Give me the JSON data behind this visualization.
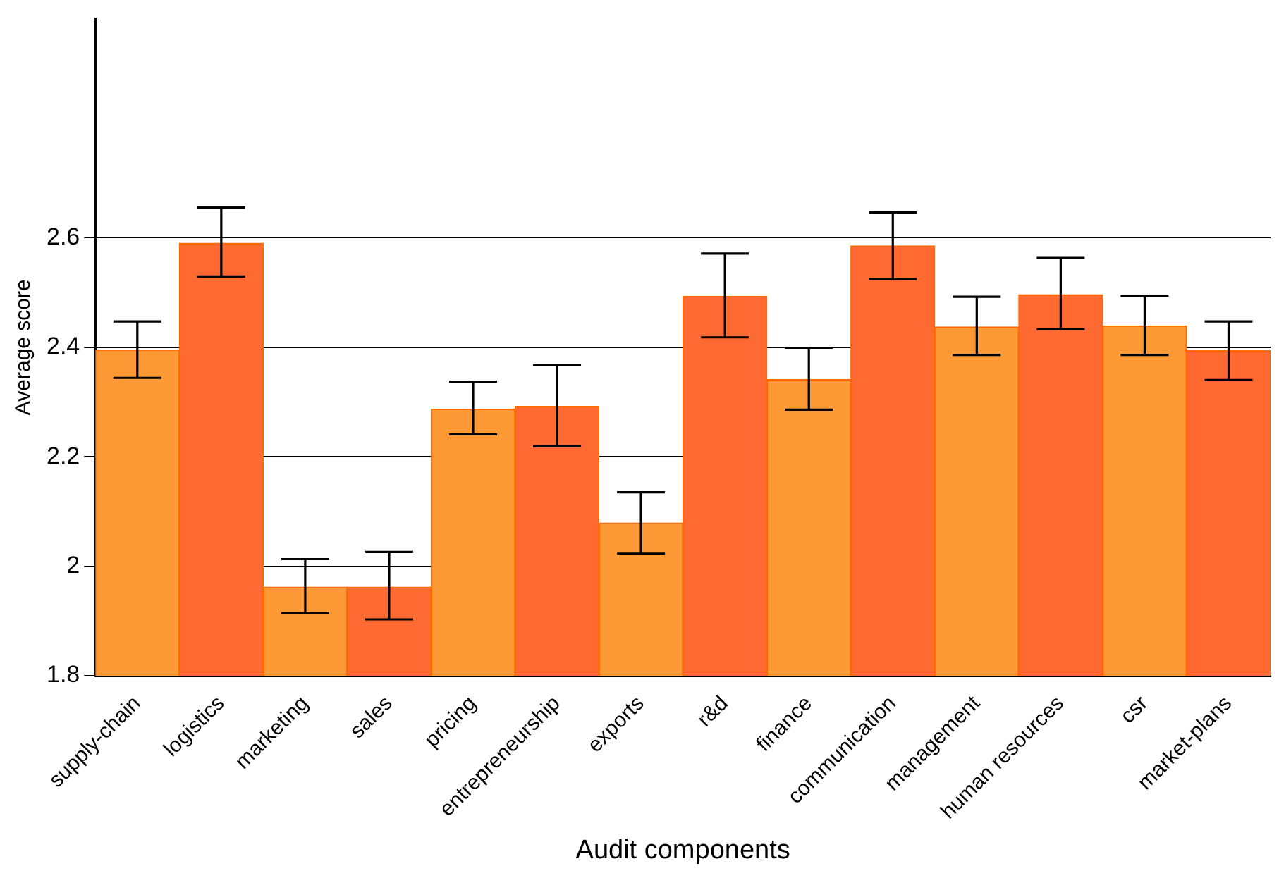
{
  "chart_data": {
    "type": "bar",
    "xlabel": "Audit components",
    "ylabel": "Average score",
    "categories": [
      "supply-chain",
      "logistics",
      "marketing",
      "sales",
      "pricing",
      "entrepreneurship",
      "exports",
      "r&d",
      "finance",
      "communication",
      "management",
      "human resources",
      "csr",
      "market-plans"
    ],
    "values": [
      2.395,
      2.59,
      1.962,
      1.962,
      2.287,
      2.292,
      2.079,
      2.493,
      2.341,
      2.585,
      2.437,
      2.496,
      2.439,
      2.394
    ],
    "errors": [
      [
        2.344,
        2.447
      ],
      [
        2.529,
        2.655
      ],
      [
        1.914,
        2.013
      ],
      [
        1.903,
        2.026
      ],
      [
        2.241,
        2.337
      ],
      [
        2.219,
        2.367
      ],
      [
        2.023,
        2.135
      ],
      [
        2.418,
        2.571
      ],
      [
        2.286,
        2.399
      ],
      [
        2.524,
        2.646
      ],
      [
        2.386,
        2.492
      ],
      [
        2.433,
        2.563
      ],
      [
        2.386,
        2.494
      ],
      [
        2.34,
        2.447
      ]
    ],
    "colors": [
      "#fd9a35",
      "#ff6a33",
      "#fd9a35",
      "#ff6a33",
      "#fd9a35",
      "#ff6a33",
      "#fd9a35",
      "#ff6a33",
      "#fd9a35",
      "#ff6a33",
      "#fd9a35",
      "#ff6a33",
      "#fd9a35",
      "#ff6a33"
    ],
    "ylim": [
      1.8,
      3.0
    ],
    "yticks": [
      1.8,
      2,
      2.2,
      2.4,
      2.6
    ],
    "grid": "y",
    "legend": false
  }
}
